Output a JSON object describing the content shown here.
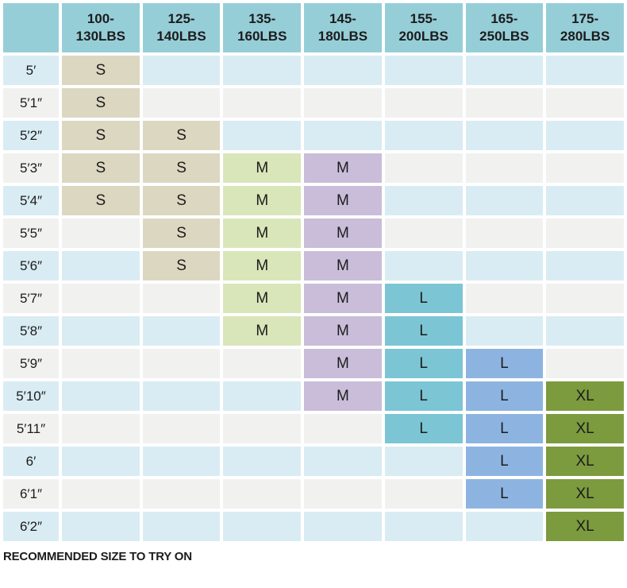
{
  "chart_data": {
    "type": "table",
    "title": "",
    "corner_label": "",
    "columns": [
      {
        "label": "100-\n130LBS",
        "fill": "#dcd7c1"
      },
      {
        "label": "125-\n140LBS",
        "fill": "#dcd7c1"
      },
      {
        "label": "135-\n160LBS",
        "fill": "#d9e6b9"
      },
      {
        "label": "145-\n180LBS",
        "fill": "#c9bdd9"
      },
      {
        "label": "155-\n200LBS",
        "fill": "#7cc5d4"
      },
      {
        "label": "165-\n250LBS",
        "fill": "#8db4e1"
      },
      {
        "label": "175-\n280LBS",
        "fill": "#7c9b3e"
      }
    ],
    "rows": [
      {
        "height": "5′",
        "sizes": [
          "S",
          "",
          "",
          "",
          "",
          "",
          ""
        ]
      },
      {
        "height": "5′1″",
        "sizes": [
          "S",
          "",
          "",
          "",
          "",
          "",
          ""
        ]
      },
      {
        "height": "5′2″",
        "sizes": [
          "S",
          "S",
          "",
          "",
          "",
          "",
          ""
        ]
      },
      {
        "height": "5′3″",
        "sizes": [
          "S",
          "S",
          "M",
          "M",
          "",
          "",
          ""
        ]
      },
      {
        "height": "5′4″",
        "sizes": [
          "S",
          "S",
          "M",
          "M",
          "",
          "",
          ""
        ]
      },
      {
        "height": "5′5″",
        "sizes": [
          "",
          "S",
          "M",
          "M",
          "",
          "",
          ""
        ]
      },
      {
        "height": "5′6″",
        "sizes": [
          "",
          "S",
          "M",
          "M",
          "",
          "",
          ""
        ]
      },
      {
        "height": "5′7″",
        "sizes": [
          "",
          "",
          "M",
          "M",
          "L",
          "",
          ""
        ]
      },
      {
        "height": "5′8″",
        "sizes": [
          "",
          "",
          "M",
          "M",
          "L",
          "",
          ""
        ]
      },
      {
        "height": "5′9″",
        "sizes": [
          "",
          "",
          "",
          "M",
          "L",
          "L",
          ""
        ]
      },
      {
        "height": "5′10″",
        "sizes": [
          "",
          "",
          "",
          "M",
          "L",
          "L",
          "XL"
        ]
      },
      {
        "height": "5′11″",
        "sizes": [
          "",
          "",
          "",
          "",
          "L",
          "L",
          "XL"
        ]
      },
      {
        "height": "6′",
        "sizes": [
          "",
          "",
          "",
          "",
          "",
          "L",
          "XL"
        ]
      },
      {
        "height": "6′1″",
        "sizes": [
          "",
          "",
          "",
          "",
          "",
          "L",
          "XL"
        ]
      },
      {
        "height": "6′2″",
        "sizes": [
          "",
          "",
          "",
          "",
          "",
          "",
          "XL"
        ]
      }
    ],
    "footer_note": "RECOMMENDED SIZE TO TRY ON",
    "colors": {
      "header_bg": "#96ced8",
      "row_alt_blue": "#d9ecf3",
      "row_alt_gray": "#f1f1f0",
      "text": "#1c1c1c",
      "gap": "#ffffff"
    },
    "legend_note": "cell fill color indicates recommended size group per weight column"
  }
}
